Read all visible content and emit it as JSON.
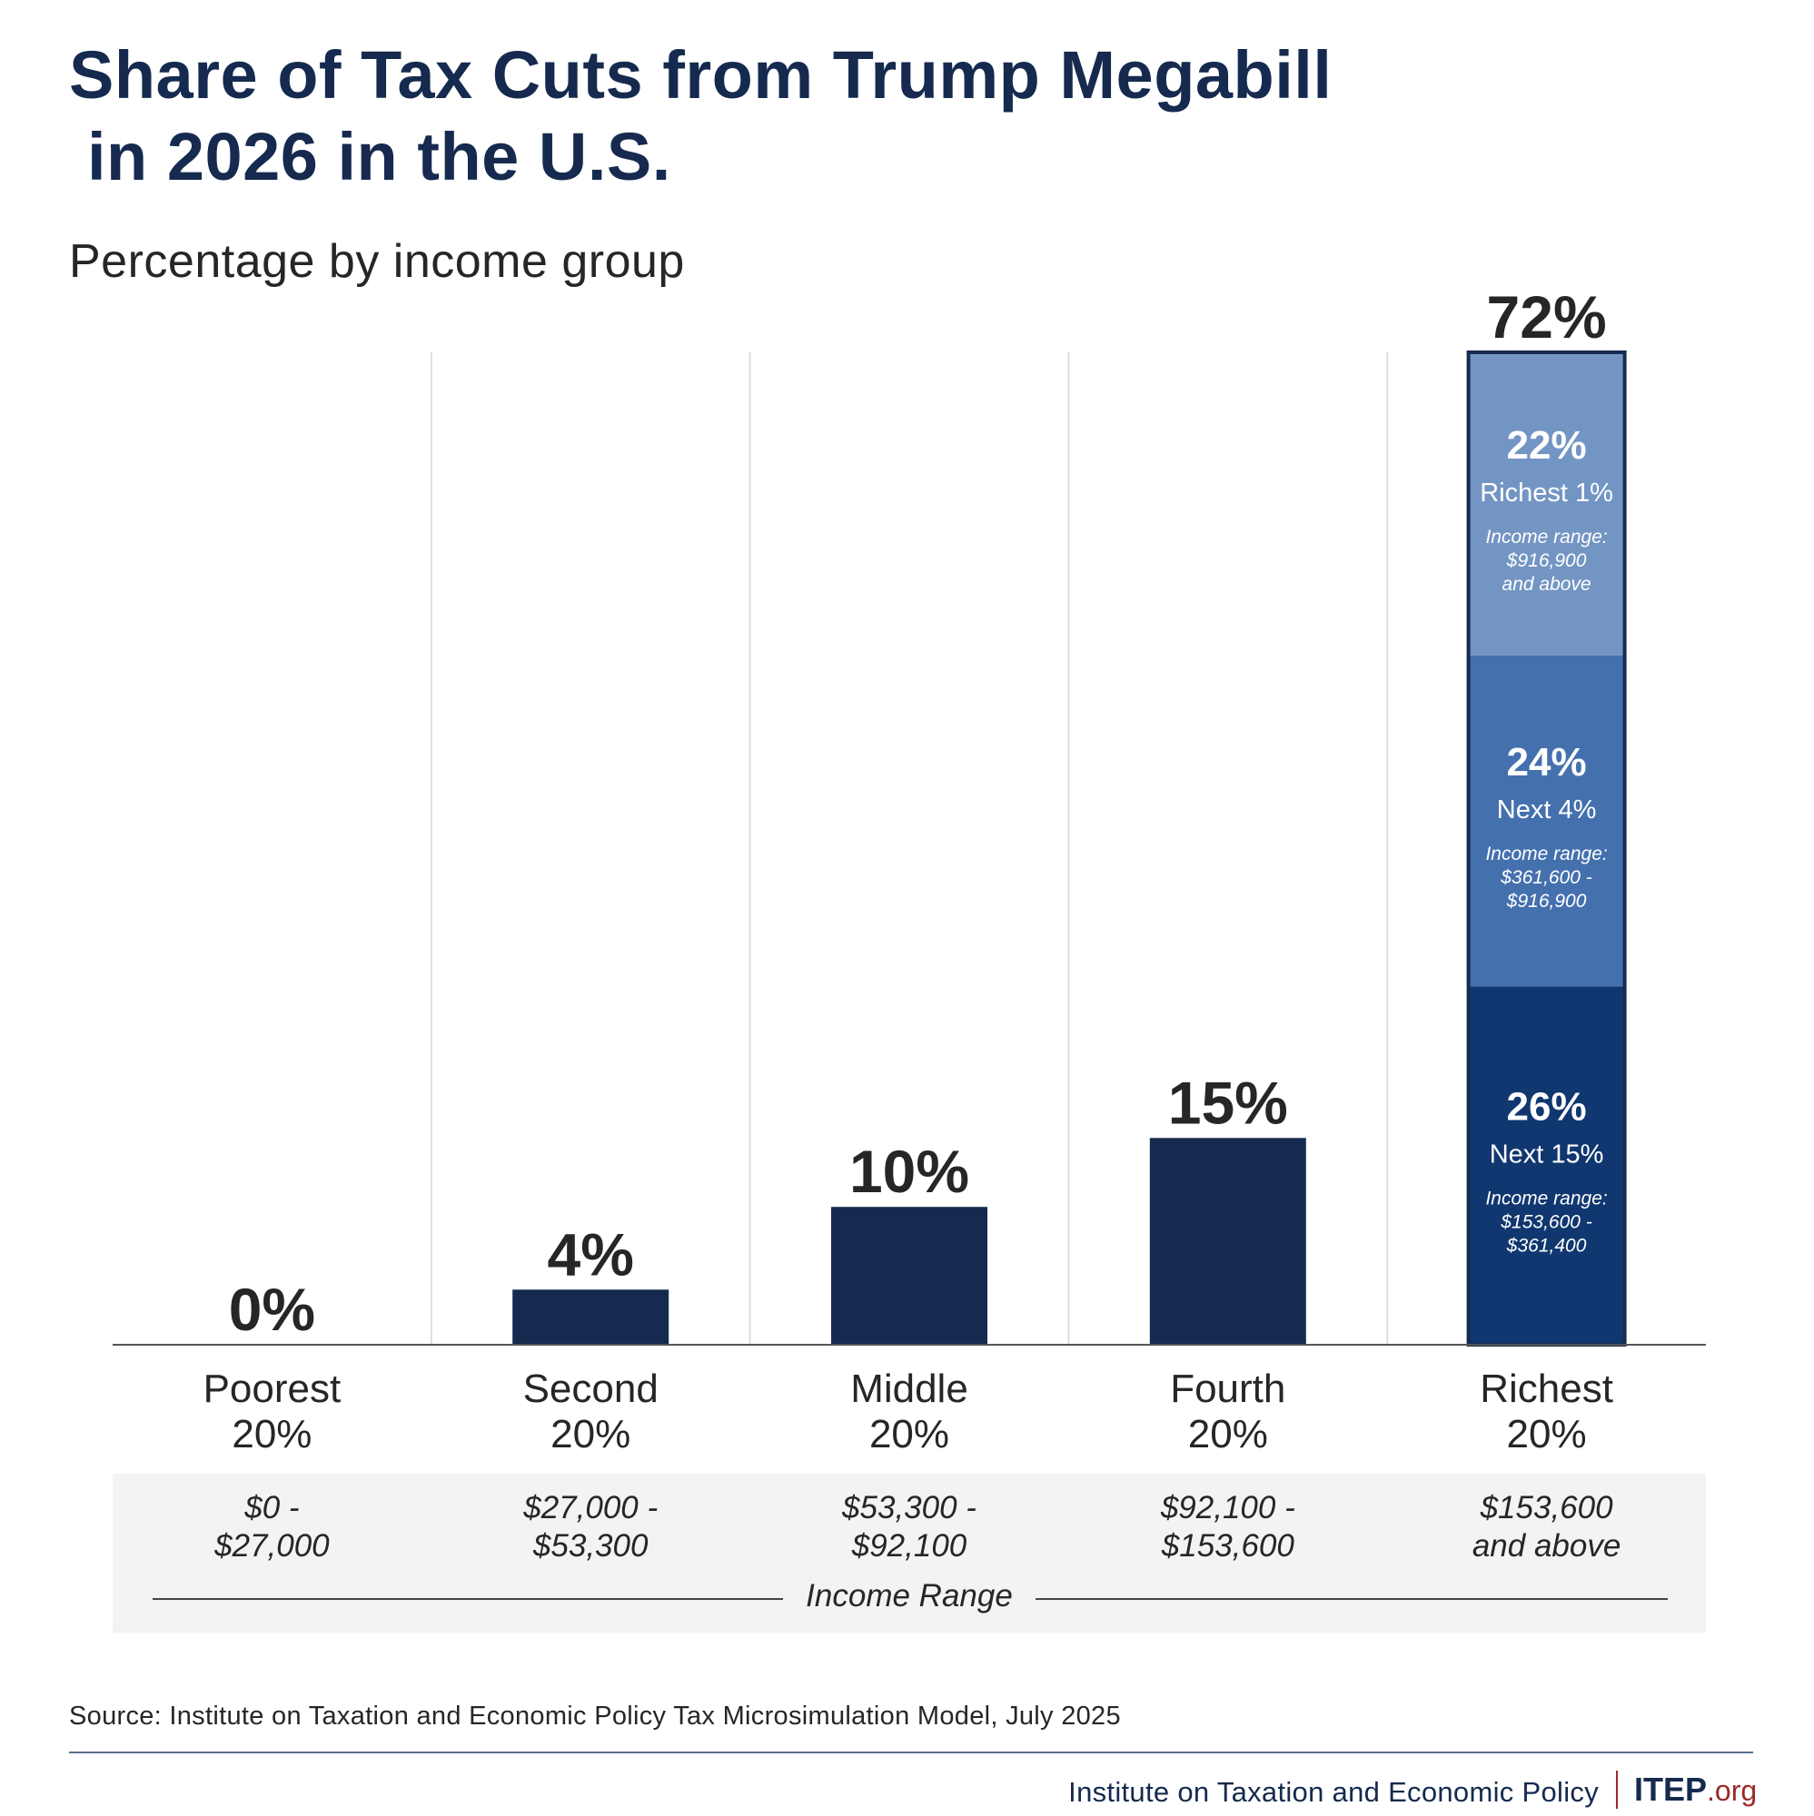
{
  "header": {
    "title_line1": "Share of Tax Cuts from Trump Megabill",
    "title_line2": "in 2026 in the U.S.",
    "subtitle": "Percentage by income group"
  },
  "colors": {
    "title": "#152a4e",
    "bar": "#152a4e",
    "richest_1pct": "#7395c3",
    "next_4pct": "#4470ae",
    "next_15pct": "#10376f",
    "stack_border": "#152a4e",
    "range_band": "#f3f3f3",
    "logo_accent": "#9b2a2a"
  },
  "chart_data": {
    "type": "bar",
    "title": "Share of Tax Cuts from Trump Megabill in 2026 in the U.S.",
    "subtitle": "Percentage by income group",
    "xlabel": "Income Range",
    "ylabel": "",
    "ylim": [
      0,
      72
    ],
    "grid": "vertical separators",
    "categories": [
      "Poorest 20%",
      "Second 20%",
      "Middle 20%",
      "Fourth 20%",
      "Richest 20%"
    ],
    "category_lines": [
      [
        "Poorest",
        "20%"
      ],
      [
        "Second",
        "20%"
      ],
      [
        "Middle",
        "20%"
      ],
      [
        "Fourth",
        "20%"
      ],
      [
        "Richest",
        "20%"
      ]
    ],
    "values": [
      0,
      4,
      10,
      15,
      72
    ],
    "value_labels": [
      "0%",
      "4%",
      "10%",
      "15%",
      "72%"
    ],
    "income_ranges": [
      [
        "$0 -",
        "$27,000"
      ],
      [
        "$27,000 -",
        "$53,300"
      ],
      [
        "$53,300 -",
        "$92,100"
      ],
      [
        "$92,100 -",
        "$153,600"
      ],
      [
        "$153,600",
        "and above"
      ]
    ],
    "stacked_breakdown": {
      "category": "Richest 20%",
      "segments": [
        {
          "name": "Next 15%",
          "value": 26,
          "label": "26%",
          "range_label": "Income range:",
          "range_lines": [
            "$153,600 -",
            "$361,400"
          ],
          "color_key": "next_15pct"
        },
        {
          "name": "Next 4%",
          "value": 24,
          "label": "24%",
          "range_label": "Income range:",
          "range_lines": [
            "$361,600 -",
            "$916,900"
          ],
          "color_key": "next_4pct"
        },
        {
          "name": "Richest 1%",
          "value": 22,
          "label": "22%",
          "range_label": "Income range:",
          "range_lines": [
            "$916,900",
            "and above"
          ],
          "color_key": "richest_1pct"
        }
      ]
    }
  },
  "footer": {
    "source": "Source: Institute on Taxation and Economic Policy Tax Microsimulation Model, July 2025",
    "org_name": "Institute on Taxation and Economic Policy",
    "logo_main": "ITEP",
    "logo_suffix": ".org"
  }
}
